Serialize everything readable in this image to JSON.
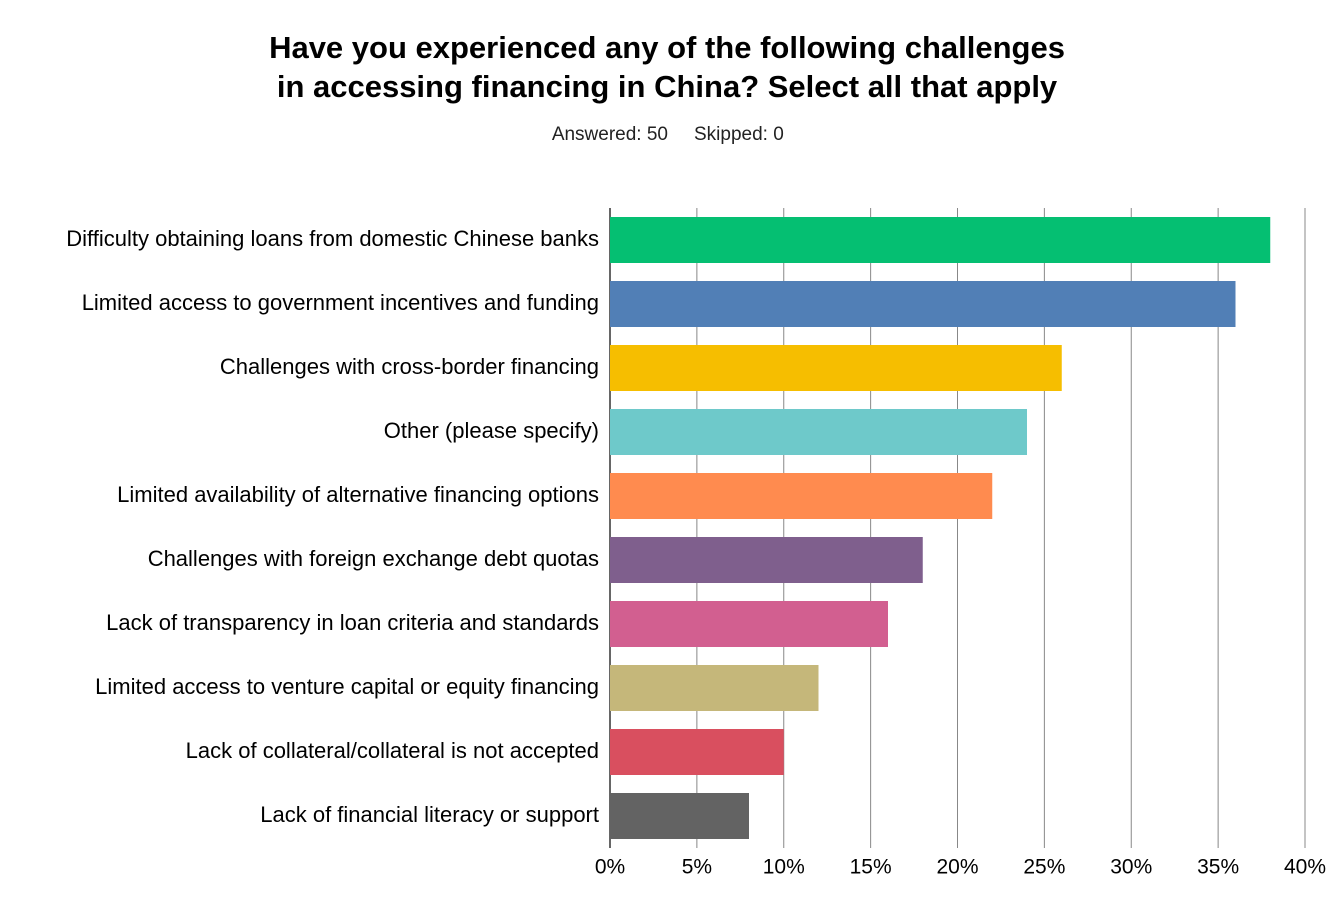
{
  "chart_data": {
    "type": "bar",
    "orientation": "horizontal",
    "title": [
      "Have you experienced any of the following challenges",
      "in accessing financing in China? Select all that apply"
    ],
    "answered": "Answered: 50",
    "skipped": "Skipped: 0",
    "categories": [
      "Difficulty obtaining loans from domestic Chinese banks",
      "Limited access to government incentives and funding",
      "Challenges with cross-border financing",
      "Other (please specify)",
      "Limited availability of alternative financing options",
      "Challenges with foreign exchange debt quotas",
      "Lack of transparency in loan criteria and standards",
      "Limited access to venture capital or equity financing",
      "Lack of collateral/collateral is not accepted",
      "Lack of financial literacy or support"
    ],
    "values": [
      38,
      36,
      26,
      24,
      22,
      18,
      16,
      12,
      10,
      8
    ],
    "colors": [
      "#05bf72",
      "#517fb6",
      "#f6be00",
      "#6ec9ca",
      "#ff8b4f",
      "#7f5f8d",
      "#d25f90",
      "#c5b77a",
      "#d94f5f",
      "#636363"
    ],
    "xlim": [
      0,
      40
    ],
    "xticks": [
      {
        "value": 0,
        "label": "0%"
      },
      {
        "value": 5,
        "label": "5%"
      },
      {
        "value": 10,
        "label": "10%"
      },
      {
        "value": 15,
        "label": "15%"
      },
      {
        "value": 20,
        "label": "20%"
      },
      {
        "value": 25,
        "label": "25%"
      },
      {
        "value": 30,
        "label": "30%"
      },
      {
        "value": 35,
        "label": "35%"
      },
      {
        "value": 40,
        "label": "40%"
      }
    ],
    "grid": true
  }
}
